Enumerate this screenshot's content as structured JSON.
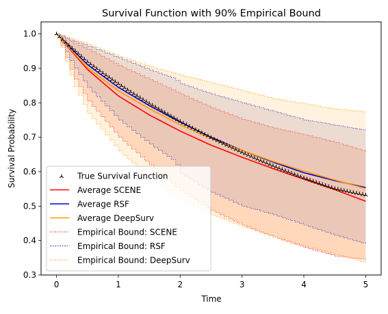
{
  "chart_data": {
    "type": "line",
    "title": "Survival Function with 90% Empirical Bound",
    "xlabel": "Time",
    "ylabel": "Survival Probability",
    "xlim": [
      -0.25,
      5.25
    ],
    "ylim": [
      0.3,
      1.035
    ],
    "xticks": [
      0,
      1,
      2,
      3,
      4,
      5
    ],
    "yticks": [
      0.3,
      0.4,
      0.5,
      0.6,
      0.7,
      0.8,
      0.9,
      1.0
    ],
    "xtick_labels": [
      "0",
      "1",
      "2",
      "3",
      "4",
      "5"
    ],
    "ytick_labels": [
      "0.3",
      "0.4",
      "0.5",
      "0.6",
      "0.7",
      "0.8",
      "0.9",
      "1.0"
    ],
    "grid": false,
    "legend_position": "lower-left",
    "true_survival": {
      "name": "True Survival Function",
      "color": "#000000",
      "x": [
        0.0,
        0.25,
        0.5,
        0.75,
        1.0,
        1.25,
        1.5,
        1.75,
        2.0,
        2.25,
        2.5,
        2.75,
        3.0,
        3.25,
        3.5,
        3.75,
        4.0,
        4.25,
        4.5,
        4.75,
        5.0
      ],
      "y": [
        1.0,
        0.959,
        0.919,
        0.886,
        0.855,
        0.826,
        0.798,
        0.772,
        0.746,
        0.722,
        0.699,
        0.677,
        0.656,
        0.636,
        0.617,
        0.599,
        0.582,
        0.566,
        0.551,
        0.541,
        0.532
      ]
    },
    "series": [
      {
        "name": "Average SCENE",
        "color": "#ff0000",
        "x": [
          0,
          0.5,
          1.0,
          1.5,
          2.0,
          2.5,
          3.0,
          3.5,
          4.0,
          4.5,
          5.0
        ],
        "y": [
          1.0,
          0.897,
          0.82,
          0.765,
          0.718,
          0.677,
          0.642,
          0.609,
          0.578,
          0.548,
          0.514
        ]
      },
      {
        "name": "Average RSF",
        "color": "#0000cc",
        "x": [
          0,
          0.5,
          1.0,
          1.5,
          2.0,
          2.5,
          3.0,
          3.5,
          4.0,
          4.5,
          5.0
        ],
        "y": [
          1.0,
          0.911,
          0.845,
          0.792,
          0.744,
          0.7,
          0.662,
          0.628,
          0.597,
          0.574,
          0.554
        ]
      },
      {
        "name": "Average DeepSurv",
        "color": "#ff9900",
        "x": [
          0,
          0.5,
          1.0,
          1.5,
          2.0,
          2.5,
          3.0,
          3.5,
          4.0,
          4.5,
          5.0
        ],
        "y": [
          1.0,
          0.902,
          0.835,
          0.783,
          0.736,
          0.696,
          0.662,
          0.63,
          0.602,
          0.576,
          0.551
        ]
      }
    ],
    "bounds": [
      {
        "name": "Empirical Bound: SCENE",
        "color": "#ff0000",
        "fill": "#ff6a3a",
        "x": [
          0,
          0.25,
          0.5,
          1.0,
          1.5,
          2.0,
          2.5,
          3.0,
          3.5,
          4.0,
          4.5,
          5.0
        ],
        "upper": [
          1.0,
          0.975,
          0.955,
          0.908,
          0.867,
          0.825,
          0.785,
          0.752,
          0.727,
          0.707,
          0.685,
          0.658
        ],
        "lower": [
          1.0,
          0.88,
          0.805,
          0.7,
          0.62,
          0.545,
          0.487,
          0.445,
          0.41,
          0.38,
          0.355,
          0.345
        ]
      },
      {
        "name": "Empirical Bound: RSF",
        "color": "#0000cc",
        "fill": "#8e7bb8",
        "x": [
          0,
          0.25,
          0.5,
          1.0,
          1.5,
          1.9,
          2.0,
          2.5,
          3.0,
          3.5,
          4.0,
          4.5,
          5.0
        ],
        "upper": [
          1.0,
          0.98,
          0.965,
          0.93,
          0.895,
          0.87,
          0.855,
          0.825,
          0.8,
          0.775,
          0.75,
          0.735,
          0.72
        ],
        "lower": [
          1.0,
          0.91,
          0.845,
          0.75,
          0.68,
          0.63,
          0.595,
          0.54,
          0.5,
          0.475,
          0.445,
          0.415,
          0.39
        ]
      },
      {
        "name": "Empirical Bound: DeepSurv",
        "color": "#ff9900",
        "fill": "#ffc36b",
        "x": [
          0,
          0.25,
          0.5,
          1.0,
          1.5,
          2.0,
          2.5,
          3.0,
          3.5,
          4.0,
          4.5,
          5.0
        ],
        "upper": [
          1.0,
          0.985,
          0.97,
          0.935,
          0.905,
          0.88,
          0.858,
          0.835,
          0.812,
          0.797,
          0.782,
          0.773
        ],
        "lower": [
          1.0,
          0.86,
          0.77,
          0.66,
          0.58,
          0.52,
          0.475,
          0.44,
          0.41,
          0.385,
          0.36,
          0.335
        ]
      }
    ]
  }
}
